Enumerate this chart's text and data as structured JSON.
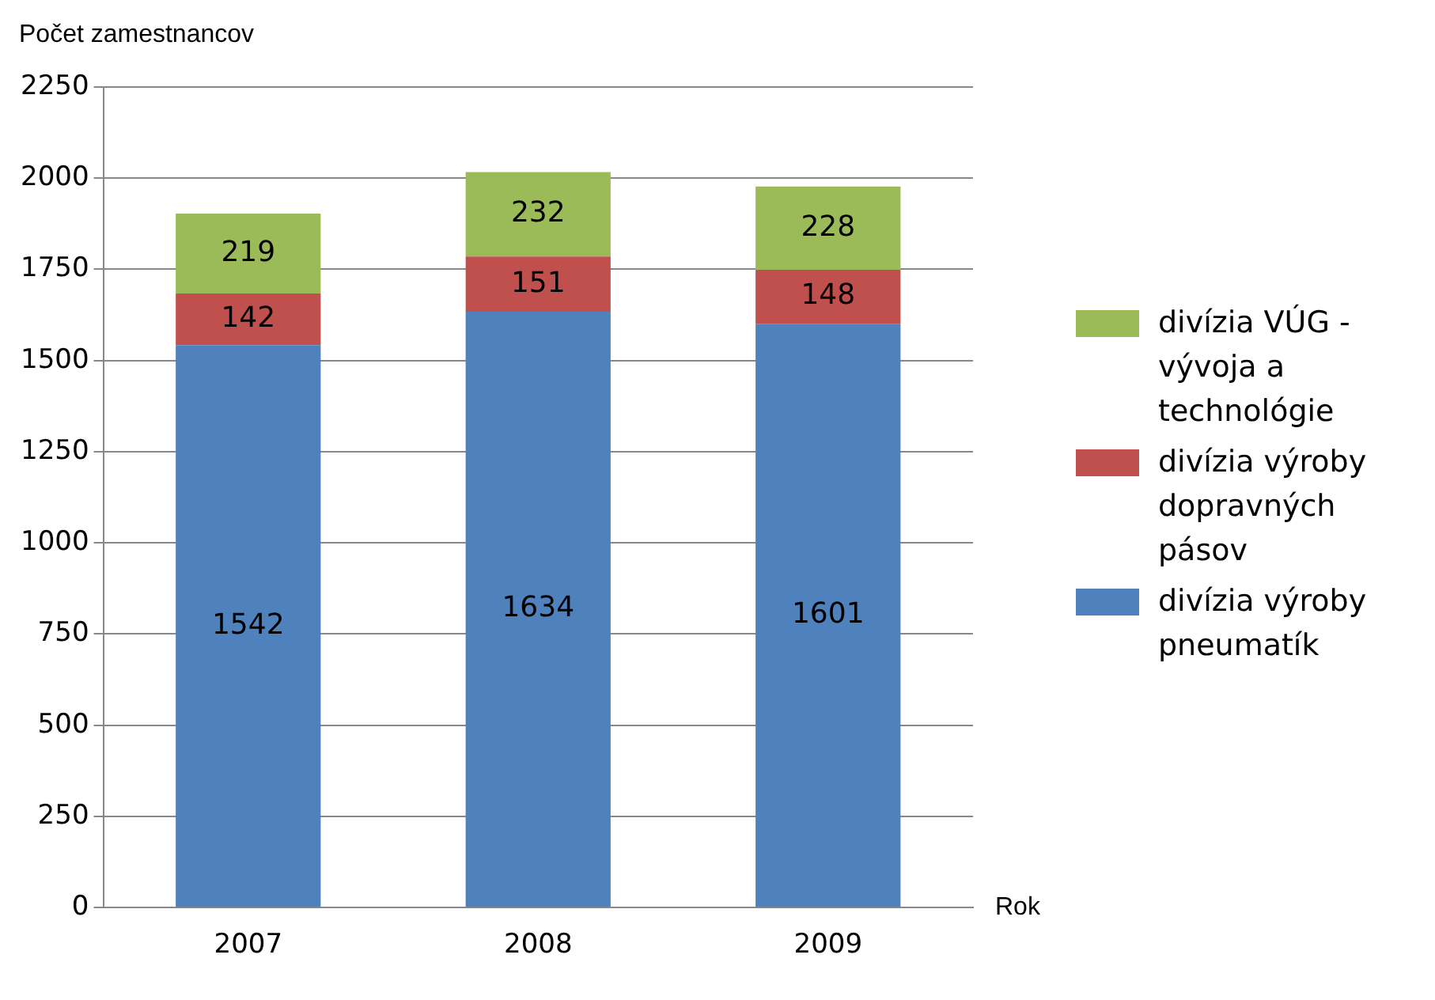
{
  "chart_data": {
    "type": "bar",
    "stacked": true,
    "ylabel": "Počet zamestnancov",
    "xlabel": "Rok",
    "categories": [
      "2007",
      "2008",
      "2009"
    ],
    "series": [
      {
        "name": "divízia výroby pneumatík",
        "color": "#4f81bd",
        "values": [
          1542,
          1634,
          1601
        ]
      },
      {
        "name": "divízia výroby dopravných pásov",
        "color": "#c0504d",
        "values": [
          142,
          151,
          148
        ]
      },
      {
        "name": "divízia VÚG - vývoja a technológie",
        "color": "#9bbb59",
        "values": [
          219,
          232,
          228
        ]
      }
    ],
    "ylim": [
      0,
      2250
    ],
    "yticks": [
      0,
      250,
      500,
      750,
      1000,
      1250,
      1500,
      1750,
      2000,
      2250
    ],
    "grid": "y",
    "legend": "right",
    "data_labels": true
  }
}
